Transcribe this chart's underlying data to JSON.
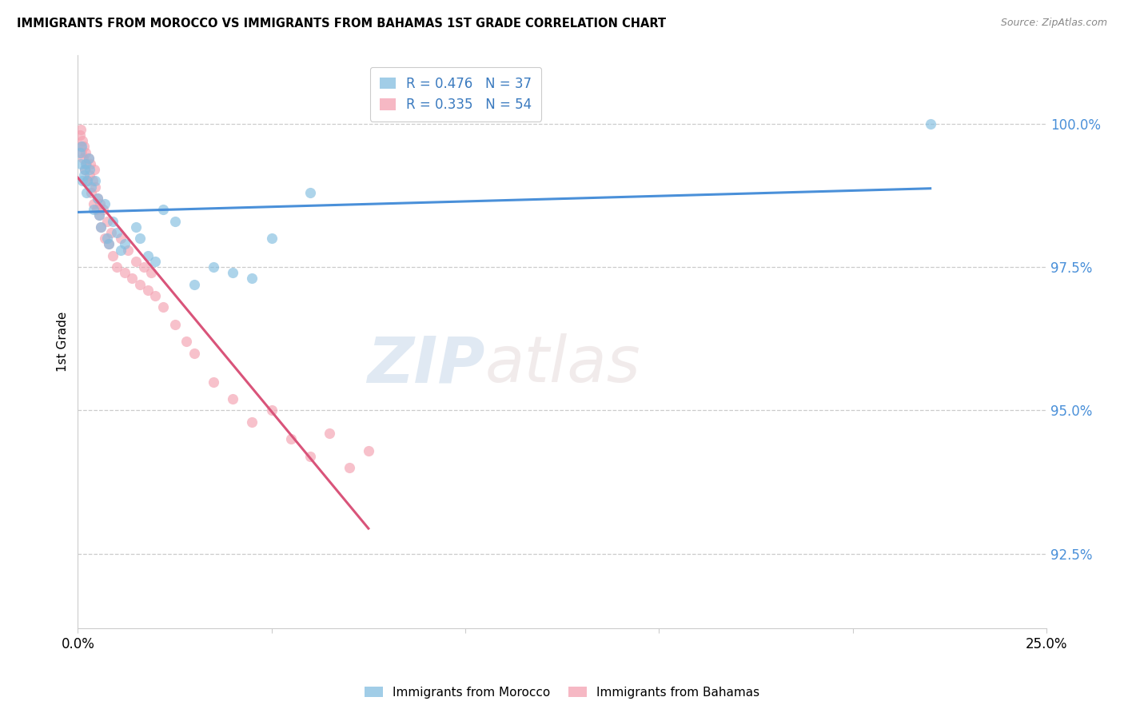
{
  "title": "IMMIGRANTS FROM MOROCCO VS IMMIGRANTS FROM BAHAMAS 1ST GRADE CORRELATION CHART",
  "source": "Source: ZipAtlas.com",
  "ylabel": "1st Grade",
  "ylabel_ticks": [
    "92.5%",
    "95.0%",
    "97.5%",
    "100.0%"
  ],
  "ylabel_vals": [
    92.5,
    95.0,
    97.5,
    100.0
  ],
  "xmin": 0.0,
  "xmax": 25.0,
  "ymin": 91.2,
  "ymax": 101.2,
  "legend1_label": "R = 0.476   N = 37",
  "legend2_label": "R = 0.335   N = 54",
  "morocco_color": "#82bde0",
  "bahamas_color": "#f4a0b0",
  "trendline_morocco_color": "#4a90d9",
  "trendline_bahamas_color": "#d9547a",
  "morocco_x": [
    0.05,
    0.08,
    0.1,
    0.12,
    0.15,
    0.18,
    0.2,
    0.22,
    0.25,
    0.28,
    0.3,
    0.35,
    0.4,
    0.45,
    0.5,
    0.55,
    0.6,
    0.7,
    0.75,
    0.8,
    0.9,
    1.0,
    1.1,
    1.2,
    1.5,
    1.6,
    1.8,
    2.0,
    2.2,
    2.5,
    3.0,
    3.5,
    4.0,
    4.5,
    5.0,
    6.0,
    22.0
  ],
  "morocco_y": [
    99.5,
    99.3,
    99.6,
    99.0,
    99.1,
    99.2,
    99.3,
    98.8,
    99.0,
    99.4,
    99.2,
    98.9,
    98.5,
    99.0,
    98.7,
    98.4,
    98.2,
    98.6,
    98.0,
    97.9,
    98.3,
    98.1,
    97.8,
    97.9,
    98.2,
    98.0,
    97.7,
    97.6,
    98.5,
    98.3,
    97.2,
    97.5,
    97.4,
    97.3,
    98.0,
    98.8,
    100.0
  ],
  "bahamas_x": [
    0.05,
    0.07,
    0.08,
    0.1,
    0.12,
    0.14,
    0.16,
    0.18,
    0.2,
    0.22,
    0.25,
    0.28,
    0.3,
    0.32,
    0.35,
    0.38,
    0.4,
    0.42,
    0.45,
    0.48,
    0.5,
    0.55,
    0.58,
    0.6,
    0.65,
    0.7,
    0.75,
    0.8,
    0.85,
    0.9,
    1.0,
    1.1,
    1.2,
    1.3,
    1.4,
    1.5,
    1.6,
    1.7,
    1.8,
    1.9,
    2.0,
    2.2,
    2.5,
    2.8,
    3.0,
    3.5,
    4.0,
    4.5,
    5.0,
    5.5,
    6.0,
    6.5,
    7.0,
    7.5
  ],
  "bahamas_y": [
    99.8,
    99.6,
    99.9,
    99.5,
    99.7,
    99.4,
    99.6,
    99.2,
    99.5,
    99.3,
    99.0,
    99.4,
    99.1,
    99.3,
    98.8,
    99.0,
    98.6,
    99.2,
    98.9,
    98.5,
    98.7,
    98.4,
    98.6,
    98.2,
    98.5,
    98.0,
    98.3,
    97.9,
    98.1,
    97.7,
    97.5,
    98.0,
    97.4,
    97.8,
    97.3,
    97.6,
    97.2,
    97.5,
    97.1,
    97.4,
    97.0,
    96.8,
    96.5,
    96.2,
    96.0,
    95.5,
    95.2,
    94.8,
    95.0,
    94.5,
    94.2,
    94.6,
    94.0,
    94.3
  ],
  "watermark_zip": "ZIP",
  "watermark_atlas": "atlas",
  "marker_size": 90,
  "bottom_legend_morocco": "Immigrants from Morocco",
  "bottom_legend_bahamas": "Immigrants from Bahamas"
}
